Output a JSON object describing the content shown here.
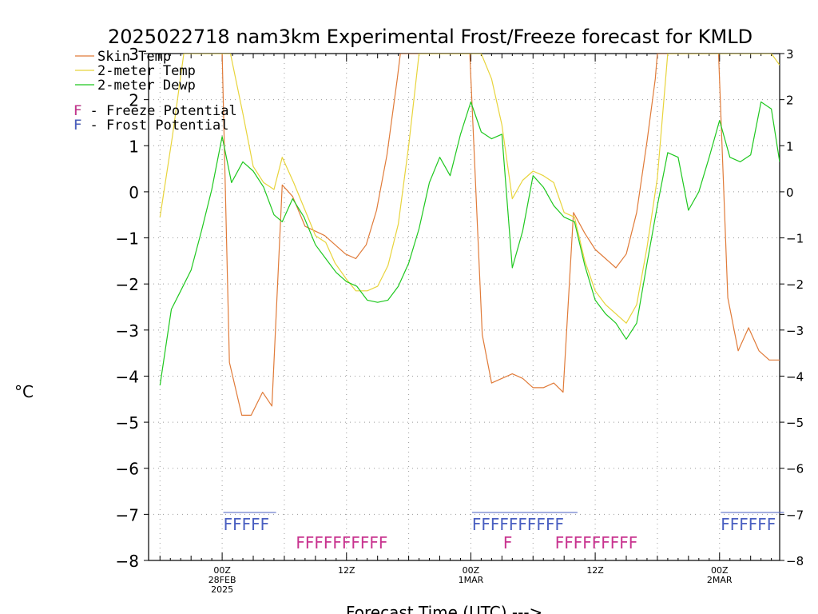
{
  "chart_data": {
    "type": "line",
    "title": "2025022718 nam3km Experimental Frost/Freeze forecast for KMLD",
    "xlabel": "Forecast Time (UTC) --->",
    "ylabel": "°C",
    "ylim": [
      -8,
      3
    ],
    "y_ticks": [
      -8,
      -7,
      -6,
      -5,
      -4,
      -3,
      -2,
      -1,
      0,
      1,
      2,
      3
    ],
    "x_ticks": [
      {
        "hour": 6,
        "line1": "00Z",
        "line2": "28FEB",
        "line3": "2025"
      },
      {
        "hour": 18,
        "line1": "12Z",
        "line2": "",
        "line3": ""
      },
      {
        "hour": 30,
        "line1": "00Z",
        "line2": "1MAR",
        "line3": ""
      },
      {
        "hour": 42,
        "line1": "12Z",
        "line2": "",
        "line3": ""
      },
      {
        "hour": 54,
        "line1": "00Z",
        "line2": "2MAR",
        "line3": ""
      }
    ],
    "grid": true,
    "legend_position": "top-left",
    "series": [
      {
        "name": "Skin Temp",
        "color": "#e07b39",
        "points": [
          [
            6,
            3
          ],
          [
            6.7,
            -3.7
          ],
          [
            7.9,
            -4.85
          ],
          [
            8.8,
            -4.85
          ],
          [
            9.9,
            -4.35
          ],
          [
            10.8,
            -4.65
          ],
          [
            11.8,
            0.15
          ],
          [
            12.8,
            -0.1
          ],
          [
            14,
            -0.75
          ],
          [
            15.9,
            -0.95
          ],
          [
            16.9,
            -1.15
          ],
          [
            17.9,
            -1.35
          ],
          [
            18.9,
            -1.45
          ],
          [
            19.9,
            -1.15
          ],
          [
            20.9,
            -0.4
          ],
          [
            21.9,
            0.8
          ],
          [
            22.9,
            2.45
          ],
          [
            23.2,
            3
          ],
          [
            29.9,
            3
          ],
          [
            31.1,
            -3.1
          ],
          [
            32,
            -4.15
          ],
          [
            33,
            -4.05
          ],
          [
            34,
            -3.95
          ],
          [
            35,
            -4.05
          ],
          [
            36,
            -4.25
          ],
          [
            37,
            -4.25
          ],
          [
            38,
            -4.15
          ],
          [
            38.9,
            -4.35
          ],
          [
            39.9,
            -0.45
          ],
          [
            41,
            -0.9
          ],
          [
            42,
            -1.25
          ],
          [
            43,
            -1.45
          ],
          [
            44,
            -1.65
          ],
          [
            45,
            -1.35
          ],
          [
            46,
            -0.45
          ],
          [
            47,
            1.1
          ],
          [
            47.8,
            2.45
          ],
          [
            48,
            3
          ],
          [
            53.9,
            3
          ],
          [
            54.8,
            -2.3
          ],
          [
            55.8,
            -3.45
          ],
          [
            56.8,
            -2.95
          ],
          [
            57.8,
            -3.45
          ],
          [
            58.8,
            -3.65
          ],
          [
            59.8,
            -3.65
          ]
        ]
      },
      {
        "name": "2-meter Temp",
        "color": "#e8d43c",
        "points": [
          [
            0,
            -0.55
          ],
          [
            1.2,
            1.2
          ],
          [
            2.3,
            3
          ],
          [
            6,
            3
          ],
          [
            6.8,
            3
          ],
          [
            8,
            1.7
          ],
          [
            9,
            0.55
          ],
          [
            10,
            0.2
          ],
          [
            11,
            0.05
          ],
          [
            11.8,
            0.75
          ],
          [
            12.9,
            0.2
          ],
          [
            14,
            -0.4
          ],
          [
            15,
            -0.95
          ],
          [
            16,
            -1.1
          ],
          [
            16.9,
            -1.55
          ],
          [
            18,
            -1.9
          ],
          [
            18.9,
            -2.15
          ],
          [
            20,
            -2.15
          ],
          [
            21,
            -2.05
          ],
          [
            22,
            -1.6
          ],
          [
            23,
            -0.7
          ],
          [
            24,
            1.0
          ],
          [
            25,
            3
          ],
          [
            31,
            3
          ],
          [
            32,
            2.45
          ],
          [
            33,
            1.45
          ],
          [
            34,
            -0.15
          ],
          [
            35,
            0.25
          ],
          [
            36,
            0.45
          ],
          [
            37,
            0.35
          ],
          [
            38,
            0.2
          ],
          [
            39,
            -0.45
          ],
          [
            40,
            -0.55
          ],
          [
            41,
            -1.5
          ],
          [
            42,
            -2.15
          ],
          [
            43,
            -2.45
          ],
          [
            44,
            -2.65
          ],
          [
            45,
            -2.85
          ],
          [
            46,
            -2.45
          ],
          [
            47,
            -1.2
          ],
          [
            48,
            0.3
          ],
          [
            49,
            3
          ],
          [
            59,
            3
          ],
          [
            59.8,
            2.75
          ]
        ]
      },
      {
        "name": "2-meter Dewp",
        "color": "#1fc81f",
        "points": [
          [
            0,
            -4.2
          ],
          [
            1.1,
            -2.55
          ],
          [
            2,
            -2.15
          ],
          [
            3,
            -1.7
          ],
          [
            4,
            -0.85
          ],
          [
            5,
            0.05
          ],
          [
            6,
            1.2
          ],
          [
            6.9,
            0.2
          ],
          [
            8,
            0.65
          ],
          [
            9,
            0.45
          ],
          [
            10,
            0.1
          ],
          [
            11,
            -0.5
          ],
          [
            11.8,
            -0.65
          ],
          [
            12.8,
            -0.15
          ],
          [
            13.9,
            -0.55
          ],
          [
            15,
            -1.15
          ],
          [
            16,
            -1.45
          ],
          [
            17,
            -1.75
          ],
          [
            18,
            -1.95
          ],
          [
            19,
            -2.05
          ],
          [
            20,
            -2.35
          ],
          [
            21,
            -2.4
          ],
          [
            22,
            -2.35
          ],
          [
            23,
            -2.05
          ],
          [
            24,
            -1.55
          ],
          [
            25,
            -0.8
          ],
          [
            26,
            0.2
          ],
          [
            27,
            0.75
          ],
          [
            28,
            0.35
          ],
          [
            29,
            1.25
          ],
          [
            30,
            1.95
          ],
          [
            31,
            1.3
          ],
          [
            32,
            1.15
          ],
          [
            33,
            1.25
          ],
          [
            34,
            -1.65
          ],
          [
            35,
            -0.85
          ],
          [
            36,
            0.35
          ],
          [
            37,
            0.1
          ],
          [
            38,
            -0.3
          ],
          [
            39,
            -0.55
          ],
          [
            40,
            -0.65
          ],
          [
            41,
            -1.6
          ],
          [
            42,
            -2.35
          ],
          [
            43,
            -2.65
          ],
          [
            44,
            -2.85
          ],
          [
            45,
            -3.2
          ],
          [
            46,
            -2.85
          ],
          [
            47,
            -1.55
          ],
          [
            48,
            -0.3
          ],
          [
            49,
            0.85
          ],
          [
            50,
            0.75
          ],
          [
            51,
            -0.4
          ],
          [
            52,
            0.0
          ],
          [
            53,
            0.75
          ],
          [
            54,
            1.55
          ],
          [
            55,
            0.75
          ],
          [
            56,
            0.65
          ],
          [
            57,
            0.8
          ],
          [
            58,
            1.95
          ],
          [
            59,
            1.8
          ],
          [
            59.8,
            0.65
          ]
        ]
      }
    ],
    "frost_potential": {
      "name": "F - Frost Potential",
      "color": "#4a5fc1",
      "y_value": -7.15,
      "groups": [
        {
          "start_hour": 6.5,
          "text": "FFFFF"
        },
        {
          "start_hour": 30.5,
          "text": "FFFFFFFFFF"
        },
        {
          "start_hour": 54.5,
          "text": "FFFFFF"
        }
      ]
    },
    "freeze_potential": {
      "name": "F - Freeze Potential",
      "color": "#c8338f",
      "y_value": -7.55,
      "groups": [
        {
          "start_hour": 13.5,
          "text": "FFFFFFFFFF"
        },
        {
          "start_hour": 33.5,
          "text": "F"
        },
        {
          "start_hour": 38.5,
          "text": "FFFFFFFFF"
        }
      ]
    }
  }
}
